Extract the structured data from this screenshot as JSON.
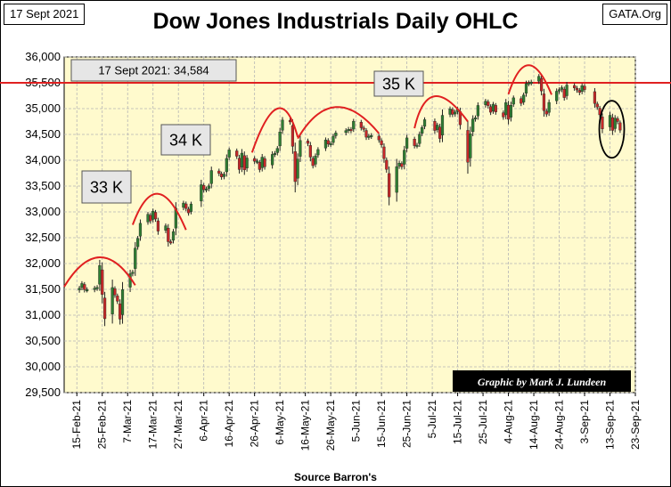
{
  "header": {
    "date_label": "17 Sept 2021",
    "site_label": "GATA.Org",
    "title": "Dow Jones Industrials Daily OHLC",
    "source": "Source Barron's"
  },
  "chart_data": {
    "type": "ohlc",
    "title": "Dow Jones Industrials Daily OHLC",
    "xlabel": "Source Barron's",
    "ylabel": "",
    "ylim": [
      29500,
      36000
    ],
    "yticks": [
      29500,
      30000,
      30500,
      31000,
      31500,
      32000,
      32500,
      33000,
      33500,
      34000,
      34500,
      35000,
      35500,
      36000
    ],
    "ytick_labels": [
      "29,500",
      "30,000",
      "30,500",
      "31,000",
      "31,500",
      "32,000",
      "32,500",
      "33,000",
      "33,500",
      "34,000",
      "34,500",
      "35,000",
      "35,500",
      "36,000"
    ],
    "xlim": [
      "2021-02-10",
      "2021-09-23"
    ],
    "xticks": [
      "2021-02-15",
      "2021-02-25",
      "2021-03-07",
      "2021-03-17",
      "2021-03-27",
      "2021-04-06",
      "2021-04-16",
      "2021-04-26",
      "2021-05-06",
      "2021-05-16",
      "2021-05-26",
      "2021-06-05",
      "2021-06-15",
      "2021-06-25",
      "2021-07-05",
      "2021-07-15",
      "2021-07-25",
      "2021-08-04",
      "2021-08-14",
      "2021-08-24",
      "2021-09-03",
      "2021-09-13",
      "2021-09-23"
    ],
    "xtick_labels": [
      "15-Feb-21",
      "25-Feb-21",
      "7-Mar-21",
      "17-Mar-21",
      "27-Mar-21",
      "6-Apr-21",
      "16-Apr-21",
      "26-Apr-21",
      "6-May-21",
      "16-May-21",
      "26-May-21",
      "5-Jun-21",
      "15-Jun-21",
      "25-Jun-21",
      "5-Jul-21",
      "15-Jul-21",
      "25-Jul-21",
      "4-Aug-21",
      "14-Aug-21",
      "24-Aug-21",
      "3-Sep-21",
      "13-Sep-21",
      "23-Sep-21"
    ],
    "grid": true,
    "background": "#FFFACD",
    "up_color": "#2E7D32",
    "down_color": "#C62828",
    "annotation_color": "#E02020",
    "reference_line": {
      "value": 35500,
      "color": "#E02020"
    },
    "annotations": {
      "last_close": "17 Sept 2021: 34,584",
      "label_33k": "33 K",
      "label_34k": "34 K",
      "label_35k": "35 K",
      "credit": "Graphic by Mark J. Lundeen"
    },
    "closes": [
      [
        "2021-02-16",
        31523
      ],
      [
        "2021-02-17",
        31613
      ],
      [
        "2021-02-18",
        31494
      ],
      [
        "2021-02-19",
        31494
      ],
      [
        "2021-02-22",
        31522
      ],
      [
        "2021-02-23",
        31537
      ],
      [
        "2021-02-24",
        31962
      ],
      [
        "2021-02-25",
        31402
      ],
      [
        "2021-02-26",
        30932
      ],
      [
        "2021-03-01",
        31535
      ],
      [
        "2021-03-02",
        31391
      ],
      [
        "2021-03-03",
        31270
      ],
      [
        "2021-03-04",
        30924
      ],
      [
        "2021-03-05",
        31496
      ],
      [
        "2021-03-08",
        31802
      ],
      [
        "2021-03-09",
        31833
      ],
      [
        "2021-03-10",
        32297
      ],
      [
        "2021-03-11",
        32486
      ],
      [
        "2021-03-12",
        32779
      ],
      [
        "2021-03-15",
        32953
      ],
      [
        "2021-03-16",
        32826
      ],
      [
        "2021-03-17",
        33015
      ],
      [
        "2021-03-18",
        32862
      ],
      [
        "2021-03-19",
        32628
      ],
      [
        "2021-03-22",
        32731
      ],
      [
        "2021-03-23",
        32423
      ],
      [
        "2021-03-24",
        32420
      ],
      [
        "2021-03-25",
        32619
      ],
      [
        "2021-03-26",
        33072
      ],
      [
        "2021-03-29",
        33171
      ],
      [
        "2021-03-30",
        33067
      ],
      [
        "2021-03-31",
        32981
      ],
      [
        "2021-04-01",
        33153
      ],
      [
        "2021-04-05",
        33527
      ],
      [
        "2021-04-06",
        33430
      ],
      [
        "2021-04-07",
        33446
      ],
      [
        "2021-04-08",
        33503
      ],
      [
        "2021-04-09",
        33801
      ],
      [
        "2021-04-12",
        33746
      ],
      [
        "2021-04-13",
        33677
      ],
      [
        "2021-04-14",
        33730
      ],
      [
        "2021-04-15",
        34035
      ],
      [
        "2021-04-16",
        34200
      ],
      [
        "2021-04-19",
        34078
      ],
      [
        "2021-04-20",
        33821
      ],
      [
        "2021-04-21",
        34137
      ],
      [
        "2021-04-22",
        33815
      ],
      [
        "2021-04-23",
        34043
      ],
      [
        "2021-04-26",
        33981
      ],
      [
        "2021-04-27",
        33984
      ],
      [
        "2021-04-28",
        33820
      ],
      [
        "2021-04-29",
        34060
      ],
      [
        "2021-04-30",
        33875
      ],
      [
        "2021-05-03",
        34113
      ],
      [
        "2021-05-04",
        34133
      ],
      [
        "2021-05-05",
        34230
      ],
      [
        "2021-05-06",
        34548
      ],
      [
        "2021-05-07",
        34778
      ],
      [
        "2021-05-10",
        34743
      ],
      [
        "2021-05-11",
        34270
      ],
      [
        "2021-05-12",
        33587
      ],
      [
        "2021-05-13",
        34022
      ],
      [
        "2021-05-14",
        34382
      ],
      [
        "2021-05-17",
        34327
      ],
      [
        "2021-05-18",
        34061
      ],
      [
        "2021-05-19",
        33896
      ],
      [
        "2021-05-20",
        34084
      ],
      [
        "2021-05-21",
        34208
      ],
      [
        "2021-05-24",
        34394
      ],
      [
        "2021-05-25",
        34313
      ],
      [
        "2021-05-26",
        34323
      ],
      [
        "2021-05-27",
        34465
      ],
      [
        "2021-05-28",
        34529
      ],
      [
        "2021-06-01",
        34575
      ],
      [
        "2021-06-02",
        34600
      ],
      [
        "2021-06-03",
        34577
      ],
      [
        "2021-06-04",
        34756
      ],
      [
        "2021-06-07",
        34630
      ],
      [
        "2021-06-08",
        34600
      ],
      [
        "2021-06-09",
        34447
      ],
      [
        "2021-06-10",
        34466
      ],
      [
        "2021-06-11",
        34480
      ],
      [
        "2021-06-14",
        34394
      ],
      [
        "2021-06-15",
        34299
      ],
      [
        "2021-06-16",
        34033
      ],
      [
        "2021-06-17",
        33823
      ],
      [
        "2021-06-18",
        33290
      ],
      [
        "2021-06-21",
        33877
      ],
      [
        "2021-06-22",
        33945
      ],
      [
        "2021-06-23",
        33874
      ],
      [
        "2021-06-24",
        34196
      ],
      [
        "2021-06-25",
        34433
      ],
      [
        "2021-06-28",
        34283
      ],
      [
        "2021-06-29",
        34292
      ],
      [
        "2021-06-30",
        34503
      ],
      [
        "2021-07-01",
        34633
      ],
      [
        "2021-07-02",
        34786
      ],
      [
        "2021-07-06",
        34577
      ],
      [
        "2021-07-07",
        34681
      ],
      [
        "2021-07-08",
        34421
      ],
      [
        "2021-07-09",
        34870
      ],
      [
        "2021-07-12",
        34996
      ],
      [
        "2021-07-13",
        34889
      ],
      [
        "2021-07-14",
        34933
      ],
      [
        "2021-07-15",
        34987
      ],
      [
        "2021-07-16",
        34688
      ],
      [
        "2021-07-19",
        33962
      ],
      [
        "2021-07-20",
        34511
      ],
      [
        "2021-07-21",
        34798
      ],
      [
        "2021-07-22",
        34823
      ],
      [
        "2021-07-23",
        35061
      ],
      [
        "2021-07-26",
        35144
      ],
      [
        "2021-07-27",
        35058
      ],
      [
        "2021-07-28",
        34930
      ],
      [
        "2021-07-29",
        35085
      ],
      [
        "2021-07-30",
        34935
      ],
      [
        "2021-08-02",
        34838
      ],
      [
        "2021-08-03",
        35116
      ],
      [
        "2021-08-04",
        34793
      ],
      [
        "2021-08-05",
        35064
      ],
      [
        "2021-08-06",
        35209
      ],
      [
        "2021-08-09",
        35102
      ],
      [
        "2021-08-10",
        35265
      ],
      [
        "2021-08-11",
        35485
      ],
      [
        "2021-08-12",
        35500
      ],
      [
        "2021-08-13",
        35515
      ],
      [
        "2021-08-16",
        35625
      ],
      [
        "2021-08-17",
        35343
      ],
      [
        "2021-08-18",
        34961
      ],
      [
        "2021-08-19",
        34894
      ],
      [
        "2021-08-20",
        35120
      ],
      [
        "2021-08-23",
        35336
      ],
      [
        "2021-08-24",
        35367
      ],
      [
        "2021-08-25",
        35406
      ],
      [
        "2021-08-26",
        35214
      ],
      [
        "2021-08-27",
        35456
      ],
      [
        "2021-08-30",
        35400
      ],
      [
        "2021-08-31",
        35361
      ],
      [
        "2021-09-01",
        35313
      ],
      [
        "2021-09-02",
        35444
      ],
      [
        "2021-09-03",
        35369
      ],
      [
        "2021-09-07",
        35100
      ],
      [
        "2021-09-08",
        35031
      ],
      [
        "2021-09-09",
        34880
      ],
      [
        "2021-09-10",
        34607
      ],
      [
        "2021-09-13",
        34870
      ],
      [
        "2021-09-14",
        34578
      ],
      [
        "2021-09-15",
        34814
      ],
      [
        "2021-09-16",
        34751
      ],
      [
        "2021-09-17",
        34584
      ]
    ]
  }
}
